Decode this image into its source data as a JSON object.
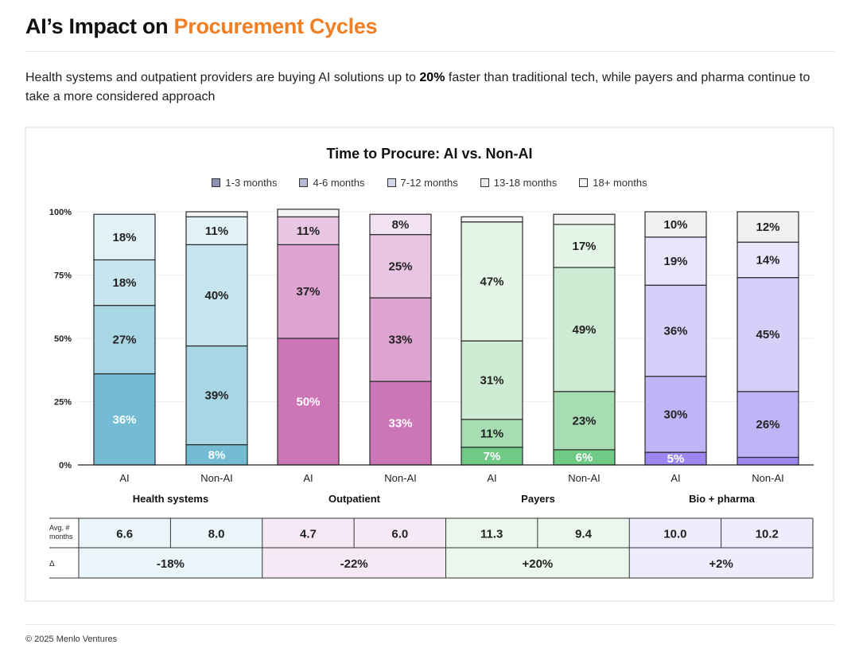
{
  "header": {
    "title_prefix": "AI’s Impact on ",
    "title_accent": "Procurement Cycles",
    "subtitle_before": "Health systems and outpatient providers are buying AI solutions up to ",
    "subtitle_bold": "20%",
    "subtitle_after": " faster than traditional tech, while payers and pharma continue to take a more considered approach"
  },
  "colors": {
    "accent": "#f07f24",
    "health": [
      "#73bcd4",
      "#a8d6e5",
      "#c6e5ee",
      "#e3f2f7",
      "#f4f4f4"
    ],
    "outpatient": [
      "#cc76b8",
      "#dda3d1",
      "#e8c5e3",
      "#f3e2f1",
      "#f4f4f4"
    ],
    "payers": [
      "#6fca86",
      "#a8dcb2",
      "#cdebd2",
      "#e4f4e6",
      "#f4f4f4"
    ],
    "pharma": [
      "#9b87ef",
      "#beb4f6",
      "#d6cff9",
      "#e8e5fc",
      "#f0f0f0"
    ]
  },
  "chart_data": {
    "type": "bar",
    "stacked": true,
    "title": "Time to Procure: AI vs. Non-AI",
    "legend": [
      "1-3 months",
      "4-6 months",
      "7-12 months",
      "13-18 months",
      "18+ months"
    ],
    "ylim": [
      0,
      100
    ],
    "yticks": [
      "0%",
      "25%",
      "50%",
      "75%",
      "100%"
    ],
    "groups": [
      {
        "name": "Health systems",
        "palette": "health",
        "bars": [
          {
            "label": "AI",
            "values": [
              36,
              27,
              18,
              18,
              0
            ]
          },
          {
            "label": "Non-AI",
            "values": [
              8,
              39,
              40,
              11,
              2
            ]
          }
        ]
      },
      {
        "name": "Outpatient",
        "palette": "outpatient",
        "bars": [
          {
            "label": "AI",
            "values": [
              50,
              37,
              11,
              0,
              3
            ]
          },
          {
            "label": "Non-AI",
            "values": [
              33,
              33,
              25,
              8,
              0
            ]
          }
        ]
      },
      {
        "name": "Payers",
        "palette": "payers",
        "bars": [
          {
            "label": "AI",
            "values": [
              7,
              11,
              31,
              47,
              2
            ]
          },
          {
            "label": "Non-AI",
            "values": [
              6,
              23,
              49,
              17,
              4
            ]
          }
        ]
      },
      {
        "name": "Bio + pharma",
        "palette": "pharma",
        "bars": [
          {
            "label": "AI",
            "values": [
              5,
              30,
              36,
              19,
              10
            ]
          },
          {
            "label": "Non-AI",
            "values": [
              3,
              26,
              45,
              14,
              12
            ]
          }
        ]
      }
    ],
    "table": {
      "row1_label": "Avg. # months",
      "row2_label": "Δ",
      "avg_months": [
        [
          "6.6",
          "8.0"
        ],
        [
          "4.7",
          "6.0"
        ],
        [
          "11.3",
          "9.4"
        ],
        [
          "10.0",
          "10.2"
        ]
      ],
      "delta": [
        "-18%",
        "-22%",
        "+20%",
        "+2%"
      ]
    }
  },
  "footer": "© 2025 Menlo Ventures"
}
